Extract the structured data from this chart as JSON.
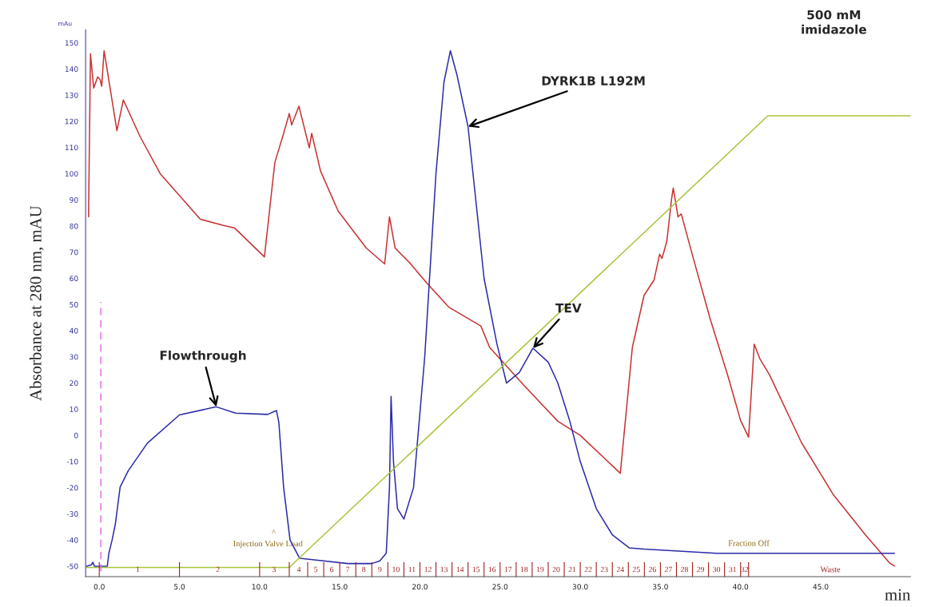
{
  "chart_data": {
    "type": "line",
    "ylabel": "Absorbance at 280 nm, mAU",
    "xlabel": "min",
    "xlim": [
      -0.85,
      50.6
    ],
    "ylim": [
      -54,
      155
    ],
    "xticks": [
      {
        "value": 0,
        "label": "0.0"
      },
      {
        "value": 5,
        "label": "5.0"
      },
      {
        "value": 10,
        "label": "10.0"
      },
      {
        "value": 15,
        "label": "15.0"
      },
      {
        "value": 20,
        "label": "20.0"
      },
      {
        "value": 25,
        "label": "25.0"
      },
      {
        "value": 30,
        "label": "30.0"
      },
      {
        "value": 35,
        "label": "35.0"
      },
      {
        "value": 40,
        "label": "40.0"
      },
      {
        "value": 45,
        "label": "45.0"
      }
    ],
    "yticks": [
      -50,
      -40,
      -30,
      -20,
      -10,
      0,
      10,
      20,
      30,
      40,
      50,
      60,
      70,
      80,
      90,
      100,
      110,
      120,
      130,
      140,
      150
    ],
    "grid": false,
    "marker": "none",
    "series": [
      {
        "color": "#c83232",
        "x": [
          -0.67,
          -0.55,
          -0.35,
          -0.1,
          0.05,
          0.15,
          0.3,
          1.1,
          1.5,
          2.55,
          3.8,
          6.3,
          7.7,
          8.45,
          10.3,
          10.95,
          11.5,
          11.85,
          12.0,
          12.45,
          13.1,
          13.25,
          13.8,
          14.9,
          16.65,
          17.8,
          18.1,
          18.45,
          19.35,
          20.4,
          21.8,
          23.8,
          24.35,
          26.5,
          28.6,
          30.0,
          32.5,
          33.25,
          33.98,
          34.6,
          34.95,
          35.1,
          35.4,
          35.7,
          35.8,
          36.1,
          36.3,
          37.0,
          38.1,
          39.2,
          40.0,
          40.5,
          40.85,
          41.2,
          41.8,
          43.8,
          45.8,
          47.8,
          49.3,
          49.6
        ],
        "values": [
          83.5,
          145.8,
          132.7,
          137,
          136,
          133.4,
          147,
          116.4,
          128.2,
          114.1,
          100,
          82.6,
          80.3,
          79.2,
          68.2,
          104.3,
          115.4,
          123,
          118.6,
          125.8,
          109.9,
          115.4,
          101,
          85.7,
          71.6,
          65.5,
          83.5,
          71.6,
          66,
          58.4,
          49,
          41.8,
          33.6,
          19,
          5.4,
          0,
          -14.5,
          33.6,
          53.5,
          59.3,
          69.2,
          67.6,
          74.2,
          90.5,
          94.5,
          83.5,
          84.6,
          68.8,
          44.6,
          22.9,
          5.7,
          -0.7,
          34.8,
          29.3,
          23.2,
          -2.8,
          -22.8,
          -38.1,
          -48.8,
          -49.9
        ]
      },
      {
        "color": "#2b2ba8",
        "x": [
          -0.8,
          -0.5,
          -0.4,
          -0.3,
          0.5,
          0.6,
          0.8,
          1.0,
          1.3,
          1.8,
          3.0,
          5.0,
          7.3,
          8.5,
          10.5,
          11.05,
          11.2,
          11.5,
          11.9,
          12.5,
          14.0,
          15.5,
          17.0,
          17.5,
          17.9,
          18.1,
          18.2,
          18.35,
          18.6,
          19.0,
          19.6,
          20.3,
          21.0,
          21.5,
          21.9,
          22.3,
          23.0,
          24.0,
          24.8,
          25.4,
          26.2,
          27.05,
          28.0,
          28.6,
          29.35,
          30.0,
          31.0,
          32.0,
          33.05,
          34.0,
          38.5,
          49.6
        ],
        "values": [
          -50,
          -49.5,
          -48.5,
          -50,
          -50,
          -45,
          -40,
          -34,
          -19.8,
          -13.6,
          -3,
          7.8,
          10.9,
          8.5,
          8,
          9.5,
          5,
          -20,
          -40,
          -47,
          -48,
          -49,
          -49,
          -48,
          -45,
          -20,
          14.9,
          -10,
          -28,
          -32,
          -20,
          30,
          100,
          135,
          147,
          138,
          118,
          60,
          35,
          20,
          24,
          33.3,
          28,
          20,
          5.4,
          -10,
          -28,
          -38,
          -43,
          -43.5,
          -45.1,
          -45.1
        ]
      },
      {
        "color": "#a8c43a",
        "x": [
          -0.8,
          11.85,
          41.7,
          50.6
        ],
        "values": [
          -50.5,
          -50.5,
          122.1,
          122.1
        ]
      },
      {
        "color": "#e070e0",
        "line_style": "dashed",
        "x": [
          0.1,
          0.1
        ],
        "values": [
          -52,
          51
        ]
      }
    ],
    "annotations": [
      {
        "text": "DYRK1B L192M",
        "x": 23.0,
        "y": 118
      },
      {
        "text": "TEV",
        "x": 27.05,
        "y": 33.3
      },
      {
        "text": "Flowthrough",
        "x": 7.3,
        "y": 10.9
      },
      "500 mM\nimidazole",
      "mAu",
      "^",
      "Injection Valve Load",
      "Fraction Off",
      "1",
      "2",
      "3",
      "4",
      "5",
      "6",
      "7",
      "8",
      "9",
      "10",
      "11",
      "12",
      "13",
      "14",
      "15",
      "16",
      "17",
      "18",
      "19",
      "20",
      "21",
      "22",
      "23",
      "24",
      "25",
      "26",
      "27",
      "28",
      "29",
      "30",
      "31",
      "32",
      "Waste"
    ]
  }
}
